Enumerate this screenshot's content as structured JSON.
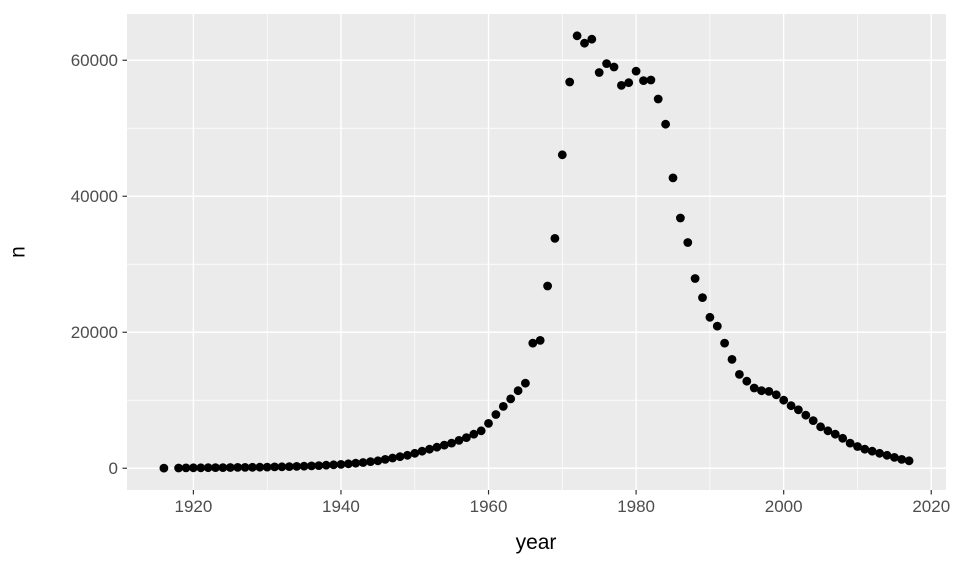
{
  "chart_data": {
    "type": "scatter",
    "title": "",
    "xlabel": "year",
    "ylabel": "n",
    "xlim": [
      1911,
      2022
    ],
    "ylim": [
      -3200,
      66800
    ],
    "x_ticks": [
      1920,
      1940,
      1960,
      1980,
      2000,
      2020
    ],
    "x_minor_ticks": [
      1930,
      1950,
      1970,
      1990,
      2010
    ],
    "y_ticks": [
      0,
      20000,
      40000,
      60000
    ],
    "y_minor_ticks": [
      10000,
      30000,
      50000
    ],
    "grid": true,
    "legend": false,
    "theme": {
      "panel_bg": "#EBEBEB",
      "grid_color": "#FFFFFF",
      "point_color": "#000000",
      "axis_text_color": "#4D4D4D",
      "axis_title_color": "#000000",
      "tick_mark_color": "#333333"
    },
    "points": [
      [
        1916,
        20
      ],
      [
        1918,
        40
      ],
      [
        1919,
        50
      ],
      [
        1920,
        60
      ],
      [
        1921,
        70
      ],
      [
        1922,
        80
      ],
      [
        1923,
        90
      ],
      [
        1924,
        100
      ],
      [
        1925,
        110
      ],
      [
        1926,
        120
      ],
      [
        1927,
        130
      ],
      [
        1928,
        140
      ],
      [
        1929,
        150
      ],
      [
        1930,
        170
      ],
      [
        1931,
        190
      ],
      [
        1932,
        210
      ],
      [
        1933,
        240
      ],
      [
        1934,
        270
      ],
      [
        1935,
        300
      ],
      [
        1936,
        340
      ],
      [
        1937,
        390
      ],
      [
        1938,
        440
      ],
      [
        1939,
        500
      ],
      [
        1940,
        570
      ],
      [
        1941,
        650
      ],
      [
        1942,
        740
      ],
      [
        1943,
        850
      ],
      [
        1944,
        970
      ],
      [
        1945,
        1100
      ],
      [
        1946,
        1300
      ],
      [
        1947,
        1500
      ],
      [
        1948,
        1700
      ],
      [
        1949,
        1900
      ],
      [
        1950,
        2200
      ],
      [
        1951,
        2500
      ],
      [
        1952,
        2800
      ],
      [
        1953,
        3100
      ],
      [
        1954,
        3400
      ],
      [
        1955,
        3700
      ],
      [
        1956,
        4100
      ],
      [
        1957,
        4500
      ],
      [
        1958,
        5000
      ],
      [
        1959,
        5500
      ],
      [
        1960,
        6600
      ],
      [
        1961,
        7900
      ],
      [
        1962,
        9100
      ],
      [
        1963,
        10200
      ],
      [
        1964,
        11400
      ],
      [
        1965,
        12500
      ],
      [
        1966,
        18400
      ],
      [
        1967,
        18800
      ],
      [
        1968,
        26800
      ],
      [
        1969,
        33800
      ],
      [
        1970,
        46100
      ],
      [
        1971,
        56800
      ],
      [
        1972,
        63600
      ],
      [
        1973,
        62500
      ],
      [
        1974,
        63100
      ],
      [
        1975,
        58200
      ],
      [
        1976,
        59500
      ],
      [
        1977,
        59000
      ],
      [
        1978,
        56300
      ],
      [
        1979,
        56700
      ],
      [
        1980,
        58400
      ],
      [
        1981,
        57000
      ],
      [
        1982,
        57100
      ],
      [
        1983,
        54300
      ],
      [
        1984,
        50600
      ],
      [
        1985,
        42700
      ],
      [
        1986,
        36800
      ],
      [
        1987,
        33200
      ],
      [
        1988,
        27900
      ],
      [
        1989,
        25100
      ],
      [
        1990,
        22200
      ],
      [
        1991,
        20900
      ],
      [
        1992,
        18400
      ],
      [
        1993,
        16000
      ],
      [
        1994,
        13800
      ],
      [
        1995,
        12800
      ],
      [
        1996,
        11800
      ],
      [
        1997,
        11400
      ],
      [
        1998,
        11300
      ],
      [
        1999,
        10800
      ],
      [
        2000,
        10000
      ],
      [
        2001,
        9200
      ],
      [
        2002,
        8600
      ],
      [
        2003,
        7800
      ],
      [
        2004,
        7000
      ],
      [
        2005,
        6100
      ],
      [
        2006,
        5500
      ],
      [
        2007,
        5000
      ],
      [
        2008,
        4400
      ],
      [
        2009,
        3700
      ],
      [
        2010,
        3200
      ],
      [
        2011,
        2800
      ],
      [
        2012,
        2500
      ],
      [
        2013,
        2200
      ],
      [
        2014,
        1900
      ],
      [
        2015,
        1600
      ],
      [
        2016,
        1300
      ],
      [
        2017,
        1100
      ]
    ]
  }
}
